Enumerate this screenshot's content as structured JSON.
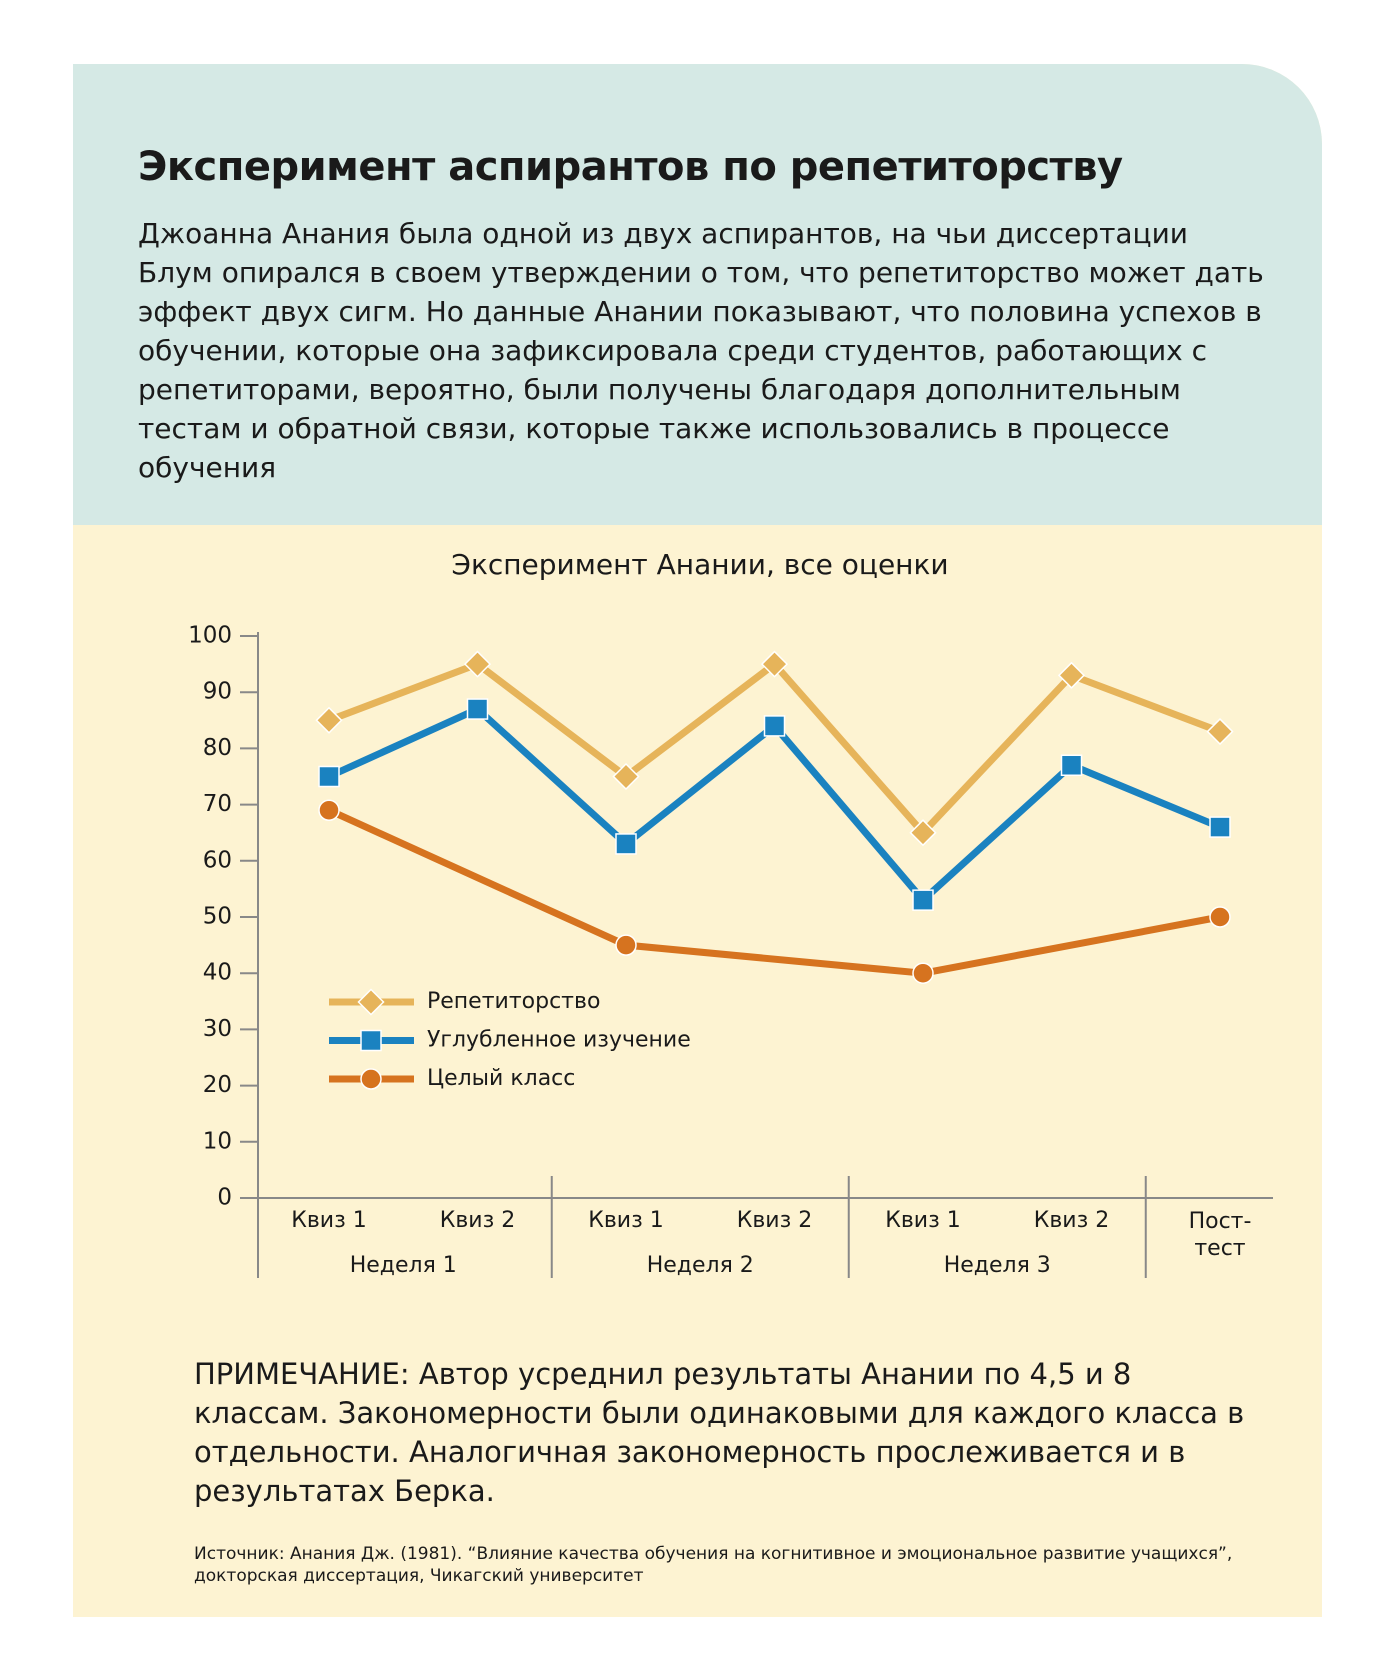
{
  "header": {
    "title": "Эксперимент аспирантов по репетиторству",
    "text": "Джоанна Анания была одной из двух аспирантов, на чьи диссертации Блум опирался в своем утверждении о том, что репетиторство может дать эффект двух сигм. Но данные Анании показывают, что половина успехов в обучении, которые она зафиксировала среди студентов, работающих с репетиторами, вероятно, были получены благодаря дополнительным тестам и обратной связи, которые также использовались в процессе обучения"
  },
  "chart_data": {
    "type": "line",
    "title": "Эксперимент Анании, все оценки",
    "categories": [
      "Квиз 1",
      "Квиз 2",
      "Квиз 1",
      "Квиз 2",
      "Квиз 1",
      "Квиз 2",
      "Пост-тест"
    ],
    "groups": [
      "Неделя 1",
      "Неделя 2",
      "Неделя 3"
    ],
    "series": [
      {
        "name": "Репетиторство",
        "color": "#e6b45a",
        "marker": "diamond",
        "values": [
          85,
          95,
          75,
          95,
          65,
          93,
          83
        ]
      },
      {
        "name": "Углубленное изучение",
        "color": "#1a82c0",
        "marker": "square",
        "values": [
          75,
          87,
          63,
          84,
          53,
          77,
          66
        ]
      },
      {
        "name": "Целый класс",
        "color": "#d6731f",
        "marker": "circle",
        "values": [
          69,
          null,
          45,
          null,
          40,
          null,
          50
        ]
      }
    ],
    "ylim": [
      0,
      100
    ],
    "yticks": [
      0,
      10,
      20,
      30,
      40,
      50,
      60,
      70,
      80,
      90,
      100
    ]
  },
  "note": "ПРИМЕЧАНИЕ: Автор усреднил результаты Анании по 4,5 и 8 классам. Закономерности были одинаковыми для каждого класса в отдельности. Аналогичная закономерность прослеживается и в результатах Берка.",
  "source": "Источник: Анания Дж. (1981). “Влияние качества обучения на когнитивное и эмоциональное развитие учащихся”, докторская диссертация, Чикагский университет"
}
